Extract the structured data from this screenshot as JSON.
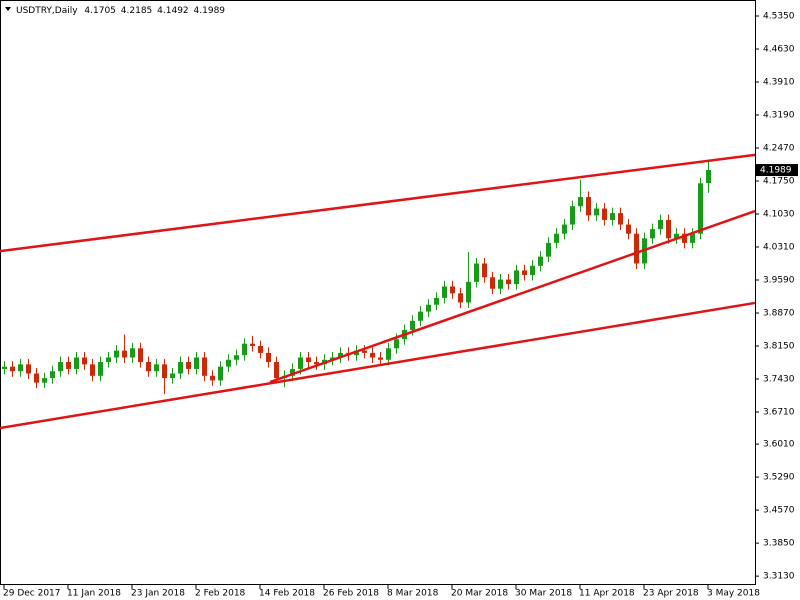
{
  "chart_data": {
    "type": "candlestick",
    "title": "USDTRY,Daily",
    "up_color": "#1a9a1a",
    "down_color": "#c82a0a",
    "line_color": "#e01414",
    "categories": [
      "29 Dec 2017",
      null,
      null,
      null,
      null,
      null,
      null,
      null,
      "11 Jan 2018",
      null,
      null,
      null,
      null,
      null,
      null,
      null,
      "23 Jan 2018",
      null,
      null,
      null,
      null,
      null,
      null,
      null,
      "2 Feb 2018",
      null,
      null,
      null,
      null,
      null,
      null,
      null,
      "14 Feb 2018",
      null,
      null,
      null,
      null,
      null,
      null,
      null,
      "26 Feb 2018",
      null,
      null,
      null,
      null,
      null,
      null,
      null,
      "8 Mar 2018",
      null,
      null,
      null,
      null,
      null,
      null,
      null,
      "20 Mar 2018",
      null,
      null,
      null,
      null,
      null,
      null,
      null,
      "30 Mar 2018",
      null,
      null,
      null,
      null,
      null,
      null,
      null,
      "11 Apr 2018",
      null,
      null,
      null,
      null,
      null,
      null,
      null,
      "23 Apr 2018",
      null,
      null,
      null,
      null,
      null,
      null,
      null,
      "3 May 2018"
    ],
    "open": [
      3.765,
      3.77,
      3.76,
      3.775,
      3.755,
      3.735,
      3.745,
      3.76,
      3.78,
      3.765,
      3.79,
      3.775,
      3.75,
      3.78,
      3.79,
      3.805,
      3.79,
      3.81,
      3.78,
      3.76,
      3.775,
      3.745,
      3.755,
      3.78,
      3.765,
      3.79,
      3.75,
      3.74,
      3.77,
      3.785,
      3.795,
      3.82,
      3.815,
      3.8,
      3.78,
      3.745,
      3.75,
      3.765,
      3.79,
      3.78,
      3.775,
      3.785,
      3.79,
      3.8,
      3.795,
      3.805,
      3.8,
      3.79,
      3.785,
      3.81,
      3.83,
      3.85,
      3.87,
      3.89,
      3.905,
      3.92,
      3.945,
      3.93,
      3.91,
      3.955,
      3.995,
      3.965,
      3.94,
      3.96,
      3.95,
      3.98,
      3.97,
      3.99,
      4.01,
      4.04,
      4.06,
      4.08,
      4.12,
      4.14,
      4.1,
      4.115,
      4.09,
      4.105,
      4.08,
      4.06,
      3.995,
      4.05,
      4.07,
      4.09,
      4.05,
      4.06,
      4.04,
      4.06,
      4.1705
    ],
    "high": [
      3.782,
      3.782,
      3.787,
      3.787,
      3.767,
      3.757,
      3.772,
      3.792,
      3.792,
      3.802,
      3.802,
      3.787,
      3.792,
      3.802,
      3.817,
      3.84,
      3.822,
      3.822,
      3.792,
      3.787,
      3.787,
      3.767,
      3.792,
      3.792,
      3.802,
      3.802,
      3.762,
      3.782,
      3.797,
      3.807,
      3.832,
      3.837,
      3.827,
      3.812,
      3.792,
      3.762,
      3.777,
      3.802,
      3.802,
      3.792,
      3.797,
      3.802,
      3.812,
      3.812,
      3.817,
      3.817,
      3.812,
      3.802,
      3.822,
      3.842,
      3.862,
      3.882,
      3.902,
      3.917,
      3.932,
      3.957,
      3.957,
      3.942,
      4.02,
      4.007,
      4.007,
      3.977,
      3.972,
      3.972,
      3.992,
      3.992,
      4.002,
      4.022,
      4.052,
      4.072,
      4.092,
      4.132,
      4.178,
      4.152,
      4.127,
      4.127,
      4.117,
      4.117,
      4.092,
      4.072,
      4.062,
      4.082,
      4.102,
      4.102,
      4.072,
      4.072,
      4.072,
      4.182,
      4.2185
    ],
    "low": [
      3.753,
      3.748,
      3.748,
      3.743,
      3.723,
      3.723,
      3.733,
      3.748,
      3.753,
      3.753,
      3.763,
      3.738,
      3.738,
      3.768,
      3.778,
      3.778,
      3.778,
      3.768,
      3.748,
      3.748,
      3.71,
      3.733,
      3.743,
      3.753,
      3.753,
      3.738,
      3.728,
      3.728,
      3.758,
      3.773,
      3.783,
      3.803,
      3.788,
      3.768,
      3.733,
      3.725,
      3.738,
      3.753,
      3.768,
      3.763,
      3.763,
      3.773,
      3.778,
      3.783,
      3.783,
      3.788,
      3.778,
      3.773,
      3.773,
      3.798,
      3.818,
      3.838,
      3.858,
      3.878,
      3.893,
      3.908,
      3.918,
      3.898,
      3.898,
      3.943,
      3.953,
      3.928,
      3.928,
      3.938,
      3.938,
      3.958,
      3.958,
      3.978,
      3.998,
      4.028,
      4.048,
      4.068,
      4.108,
      4.088,
      4.088,
      4.078,
      4.078,
      4.068,
      4.048,
      3.983,
      3.983,
      4.038,
      4.058,
      4.038,
      4.038,
      4.028,
      4.028,
      4.048,
      4.1492
    ],
    "close": [
      3.77,
      3.76,
      3.775,
      3.755,
      3.735,
      3.745,
      3.76,
      3.78,
      3.765,
      3.79,
      3.775,
      3.75,
      3.78,
      3.79,
      3.805,
      3.79,
      3.81,
      3.78,
      3.76,
      3.775,
      3.745,
      3.755,
      3.78,
      3.765,
      3.79,
      3.75,
      3.74,
      3.77,
      3.785,
      3.795,
      3.82,
      3.815,
      3.8,
      3.78,
      3.745,
      3.75,
      3.765,
      3.79,
      3.78,
      3.775,
      3.785,
      3.79,
      3.8,
      3.795,
      3.805,
      3.8,
      3.79,
      3.785,
      3.81,
      3.83,
      3.85,
      3.87,
      3.89,
      3.905,
      3.92,
      3.945,
      3.93,
      3.91,
      3.955,
      3.995,
      3.965,
      3.94,
      3.96,
      3.95,
      3.98,
      3.97,
      3.99,
      4.01,
      4.04,
      4.06,
      4.08,
      4.12,
      4.14,
      4.1,
      4.115,
      4.09,
      4.105,
      4.08,
      4.06,
      3.995,
      4.05,
      4.07,
      4.09,
      4.05,
      4.06,
      4.04,
      4.06,
      4.17,
      4.1989
    ],
    "trendlines": [
      {
        "x": [
          -0.5,
          93.875
        ],
        "y": [
          4.022,
          4.232
        ]
      },
      {
        "x": [
          -0.5,
          93.875
        ],
        "y": [
          3.636,
          3.909
        ]
      },
      {
        "x": [
          33.25,
          93.875
        ],
        "y": [
          3.7365,
          4.1095
        ]
      }
    ],
    "xlim": [
      -0.5,
      93.875
    ],
    "ylim": [
      3.2936,
      4.5699
    ],
    "yticks": [
      {
        "value": 4.535,
        "label": "4.5350"
      },
      {
        "value": 4.463,
        "label": "4.4630"
      },
      {
        "value": 4.391,
        "label": "4.3910"
      },
      {
        "value": 4.319,
        "label": "4.3190"
      },
      {
        "value": 4.247,
        "label": "4.2470"
      },
      {
        "value": 4.175,
        "label": "4.1750"
      },
      {
        "value": 4.103,
        "label": "4.1030"
      },
      {
        "value": 4.031,
        "label": "4.0310"
      },
      {
        "value": 3.959,
        "label": "3.9590"
      },
      {
        "value": 3.887,
        "label": "3.8870"
      },
      {
        "value": 3.815,
        "label": "3.8150"
      },
      {
        "value": 3.743,
        "label": "3.7430"
      },
      {
        "value": 3.671,
        "label": "3.6710"
      },
      {
        "value": 3.601,
        "label": "3.6010"
      },
      {
        "value": 3.529,
        "label": "3.5290"
      },
      {
        "value": 3.457,
        "label": "3.4570"
      },
      {
        "value": 3.385,
        "label": "3.3850"
      },
      {
        "value": 3.313,
        "label": "3.3130"
      }
    ]
  }
}
